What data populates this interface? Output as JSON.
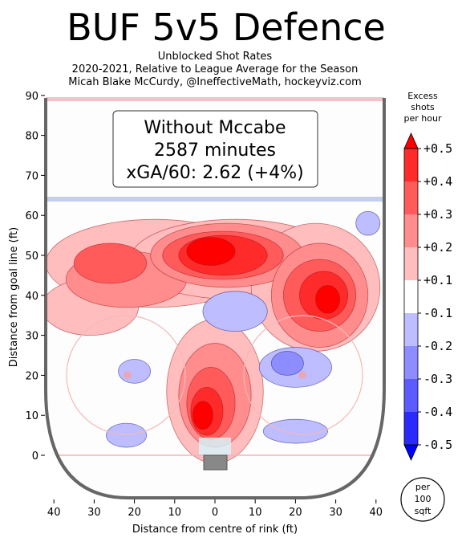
{
  "chart_data": {
    "type": "heatmap",
    "title": "BUF 5v5 Defence",
    "subtitle_lines": [
      "Unblocked Shot Rates",
      "2020-2021, Relative to League Average for the Season",
      "Micah Blake McCurdy, @IneffectiveMath, hockeyviz.com"
    ],
    "xlabel": "Distance from centre of rink (ft)",
    "ylabel": "Distance from goal line (ft)",
    "x_ticks": [
      "40",
      "30",
      "20",
      "10",
      "0",
      "10",
      "20",
      "30",
      "40"
    ],
    "y_ticks": [
      "90",
      "80",
      "70",
      "60",
      "50",
      "40",
      "30",
      "20",
      "10",
      "0"
    ],
    "xlim": [
      -42,
      42
    ],
    "ylim": [
      -11,
      90
    ],
    "info_box": {
      "line1": "Without Mccabe",
      "line2": "2587 minutes",
      "line3": "xGA/60: 2.62 (+4%)"
    },
    "colorbar": {
      "title_lines": [
        "Excess",
        "shots",
        "per hour"
      ],
      "labels": [
        "+0.5",
        "+0.4",
        "+0.3",
        "+0.2",
        "+0.1",
        "-0.1",
        "-0.2",
        "-0.3",
        "-0.4",
        "-0.5"
      ],
      "colors": [
        "#ff0000",
        "#ff2a2a",
        "#ff5b5b",
        "#ff8d8d",
        "#ffbdbd",
        "#ffffff",
        "#bdbdff",
        "#8d8dff",
        "#5b5bff",
        "#2a2aff",
        "#0000ff"
      ]
    },
    "unit_badge": [
      "per",
      "100",
      "sqft"
    ],
    "blobs": [
      {
        "x": -15,
        "y": 48,
        "rx": 27,
        "ry": 11,
        "level": 1
      },
      {
        "x": -31,
        "y": 37,
        "rx": 12,
        "ry": 7,
        "level": 1
      },
      {
        "x": 5,
        "y": 49,
        "rx": 26,
        "ry": 10,
        "level": 1
      },
      {
        "x": 25,
        "y": 42,
        "rx": 16,
        "ry": 16,
        "level": 1
      },
      {
        "x": 0,
        "y": 16,
        "rx": 12,
        "ry": 18,
        "level": 1
      },
      {
        "x": -22,
        "y": 44,
        "rx": 15,
        "ry": 7,
        "level": 2
      },
      {
        "x": 3,
        "y": 50,
        "rx": 19,
        "ry": 8,
        "level": 2
      },
      {
        "x": 26,
        "y": 40,
        "rx": 12,
        "ry": 13,
        "level": 2
      },
      {
        "x": 0,
        "y": 15,
        "rx": 9,
        "ry": 13,
        "level": 2
      },
      {
        "x": -26,
        "y": 48,
        "rx": 9,
        "ry": 5,
        "level": 3
      },
      {
        "x": 2,
        "y": 50,
        "rx": 15,
        "ry": 6,
        "level": 3
      },
      {
        "x": 26,
        "y": 40,
        "rx": 9,
        "ry": 9,
        "level": 3
      },
      {
        "x": -1,
        "y": 13,
        "rx": 6,
        "ry": 9,
        "level": 3
      },
      {
        "x": 2,
        "y": 50,
        "rx": 11,
        "ry": 5,
        "level": 4
      },
      {
        "x": 27,
        "y": 40,
        "rx": 6,
        "ry": 6,
        "level": 4
      },
      {
        "x": -2,
        "y": 11,
        "rx": 4,
        "ry": 6,
        "level": 4
      },
      {
        "x": -1,
        "y": 51,
        "rx": 6,
        "ry": 3.5,
        "level": 5
      },
      {
        "x": 28,
        "y": 39,
        "rx": 3,
        "ry": 3.5,
        "level": 5
      },
      {
        "x": -3,
        "y": 10,
        "rx": 2.5,
        "ry": 3.5,
        "level": 5
      },
      {
        "x": 5,
        "y": 36,
        "rx": 8,
        "ry": 5,
        "level": -1
      },
      {
        "x": 20,
        "y": 22,
        "rx": 9,
        "ry": 5,
        "level": -1
      },
      {
        "x": -20,
        "y": 21,
        "rx": 4,
        "ry": 3,
        "level": -1
      },
      {
        "x": -22,
        "y": 5,
        "rx": 5,
        "ry": 3,
        "level": -1
      },
      {
        "x": 20,
        "y": 6,
        "rx": 8,
        "ry": 3,
        "level": -1
      },
      {
        "x": 38,
        "y": 58,
        "rx": 3,
        "ry": 3,
        "level": -1
      },
      {
        "x": 18,
        "y": 23,
        "rx": 4,
        "ry": 3,
        "level": -2
      }
    ]
  }
}
